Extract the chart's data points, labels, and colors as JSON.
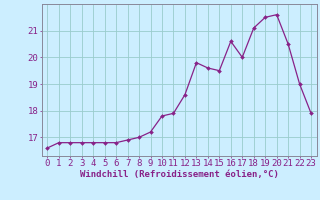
{
  "x": [
    0,
    1,
    2,
    3,
    4,
    5,
    6,
    7,
    8,
    9,
    10,
    11,
    12,
    13,
    14,
    15,
    16,
    17,
    18,
    19,
    20,
    21,
    22,
    23
  ],
  "y": [
    16.6,
    16.8,
    16.8,
    16.8,
    16.8,
    16.8,
    16.8,
    16.9,
    17.0,
    17.2,
    17.8,
    17.9,
    18.6,
    19.8,
    19.6,
    19.5,
    20.6,
    20.0,
    21.1,
    21.5,
    21.6,
    20.5,
    19.0,
    17.9
  ],
  "line_color": "#882288",
  "marker": "D",
  "markersize": 2.0,
  "linewidth": 0.9,
  "bg_color": "#cceeff",
  "grid_color": "#99cccc",
  "axis_color": "#888899",
  "text_color": "#882288",
  "xlabel": "Windchill (Refroidissement éolien,°C)",
  "xlim": [
    -0.5,
    23.5
  ],
  "ylim": [
    16.3,
    22.0
  ],
  "yticks": [
    17,
    18,
    19,
    20,
    21
  ],
  "xticks": [
    0,
    1,
    2,
    3,
    4,
    5,
    6,
    7,
    8,
    9,
    10,
    11,
    12,
    13,
    14,
    15,
    16,
    17,
    18,
    19,
    20,
    21,
    22,
    23
  ],
  "xlabel_fontsize": 6.5,
  "tick_fontsize": 6.5,
  "tick_color": "#882288"
}
